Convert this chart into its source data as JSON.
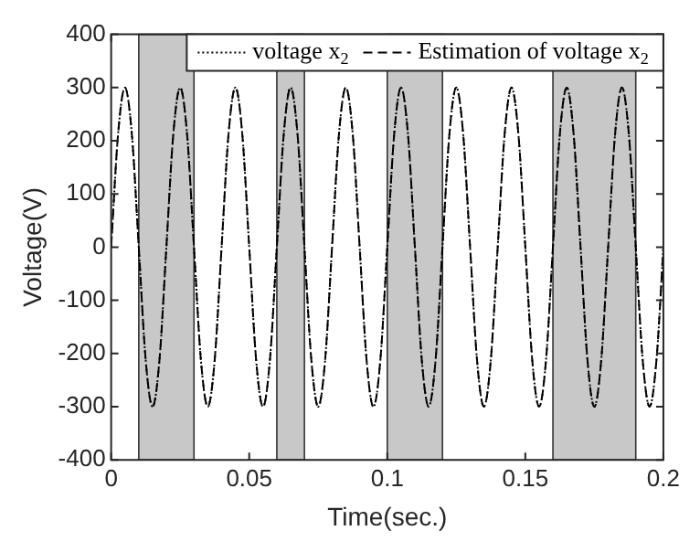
{
  "chart_data": {
    "type": "line",
    "xlabel": "Time(sec.)",
    "ylabel": "Voltage(V)",
    "x": [
      0,
      0.0025,
      0.005,
      0.0075,
      0.01,
      0.0125,
      0.015,
      0.0175,
      0.02,
      0.0225,
      0.025,
      0.0275,
      0.03,
      0.0325,
      0.035,
      0.0375,
      0.04,
      0.0425,
      0.045,
      0.0475,
      0.05,
      0.0525,
      0.055,
      0.0575,
      0.06,
      0.0625,
      0.065,
      0.0675,
      0.07,
      0.0725,
      0.075,
      0.0775,
      0.08,
      0.0825,
      0.085,
      0.0875,
      0.09,
      0.0925,
      0.095,
      0.0975,
      0.1,
      0.1025,
      0.105,
      0.1075,
      0.11,
      0.1125,
      0.115,
      0.1175,
      0.12,
      0.1225,
      0.125,
      0.1275,
      0.13,
      0.1325,
      0.135,
      0.1375,
      0.14,
      0.1425,
      0.145,
      0.1475,
      0.15,
      0.1525,
      0.155,
      0.1575,
      0.16,
      0.1625,
      0.165,
      0.1675,
      0.17,
      0.1725,
      0.175,
      0.1775,
      0.18,
      0.1825,
      0.185,
      0.1875,
      0.19,
      0.1925,
      0.195,
      0.1975,
      0.2
    ],
    "series": [
      {
        "name": "voltage x$_{2}$",
        "color": "#000000",
        "line_style": "dotted",
        "values": [
          0,
          212,
          300,
          212,
          0,
          -212,
          -300,
          -212,
          0,
          212,
          300,
          212,
          0,
          -212,
          -300,
          -212,
          0,
          212,
          300,
          212,
          0,
          -212,
          -300,
          -212,
          0,
          212,
          300,
          212,
          0,
          -212,
          -300,
          -212,
          0,
          212,
          300,
          212,
          0,
          -212,
          -300,
          -212,
          0,
          212,
          300,
          212,
          0,
          -212,
          -300,
          -212,
          0,
          212,
          300,
          212,
          0,
          -212,
          -300,
          -212,
          0,
          212,
          300,
          212,
          0,
          -212,
          -300,
          -212,
          0,
          212,
          300,
          212,
          0,
          -212,
          -300,
          -212,
          0,
          212,
          300,
          212,
          0,
          -212,
          -300,
          -212,
          0
        ]
      },
      {
        "name": "Estimation of voltage x$_{2}$",
        "color": "#000000",
        "line_style": "dashed",
        "values": [
          0,
          212,
          300,
          212,
          0,
          -212,
          -300,
          -212,
          0,
          212,
          300,
          212,
          0,
          -212,
          -300,
          -212,
          0,
          212,
          300,
          212,
          0,
          -212,
          -300,
          -212,
          0,
          212,
          300,
          212,
          0,
          -212,
          -300,
          -212,
          0,
          212,
          300,
          212,
          0,
          -212,
          -300,
          -212,
          0,
          212,
          300,
          212,
          0,
          -212,
          -300,
          -212,
          0,
          212,
          300,
          212,
          0,
          -212,
          -300,
          -212,
          0,
          212,
          300,
          212,
          0,
          -212,
          -300,
          -212,
          0,
          212,
          300,
          212,
          0,
          -212,
          -300,
          -212,
          0,
          212,
          300,
          212,
          0,
          -212,
          -300,
          -212,
          0
        ]
      }
    ],
    "bands": [
      {
        "axis": "x",
        "from": 0.01,
        "to": 0.03,
        "color": "#c8c8c8"
      },
      {
        "axis": "x",
        "from": 0.06,
        "to": 0.07,
        "color": "#c8c8c8"
      },
      {
        "axis": "x",
        "from": 0.1,
        "to": 0.12,
        "color": "#c8c8c8"
      },
      {
        "axis": "x",
        "from": 0.16,
        "to": 0.19,
        "color": "#c8c8c8"
      }
    ],
    "xlim": [
      0,
      0.2
    ],
    "xticks": [
      0,
      0.05,
      0.1,
      0.15,
      0.2
    ],
    "ylim": [
      -400,
      400
    ],
    "yticks": [
      -400,
      -300,
      -200,
      -100,
      0,
      100,
      200,
      300,
      400
    ],
    "grid": false,
    "legend": "top right",
    "marker": "none"
  }
}
